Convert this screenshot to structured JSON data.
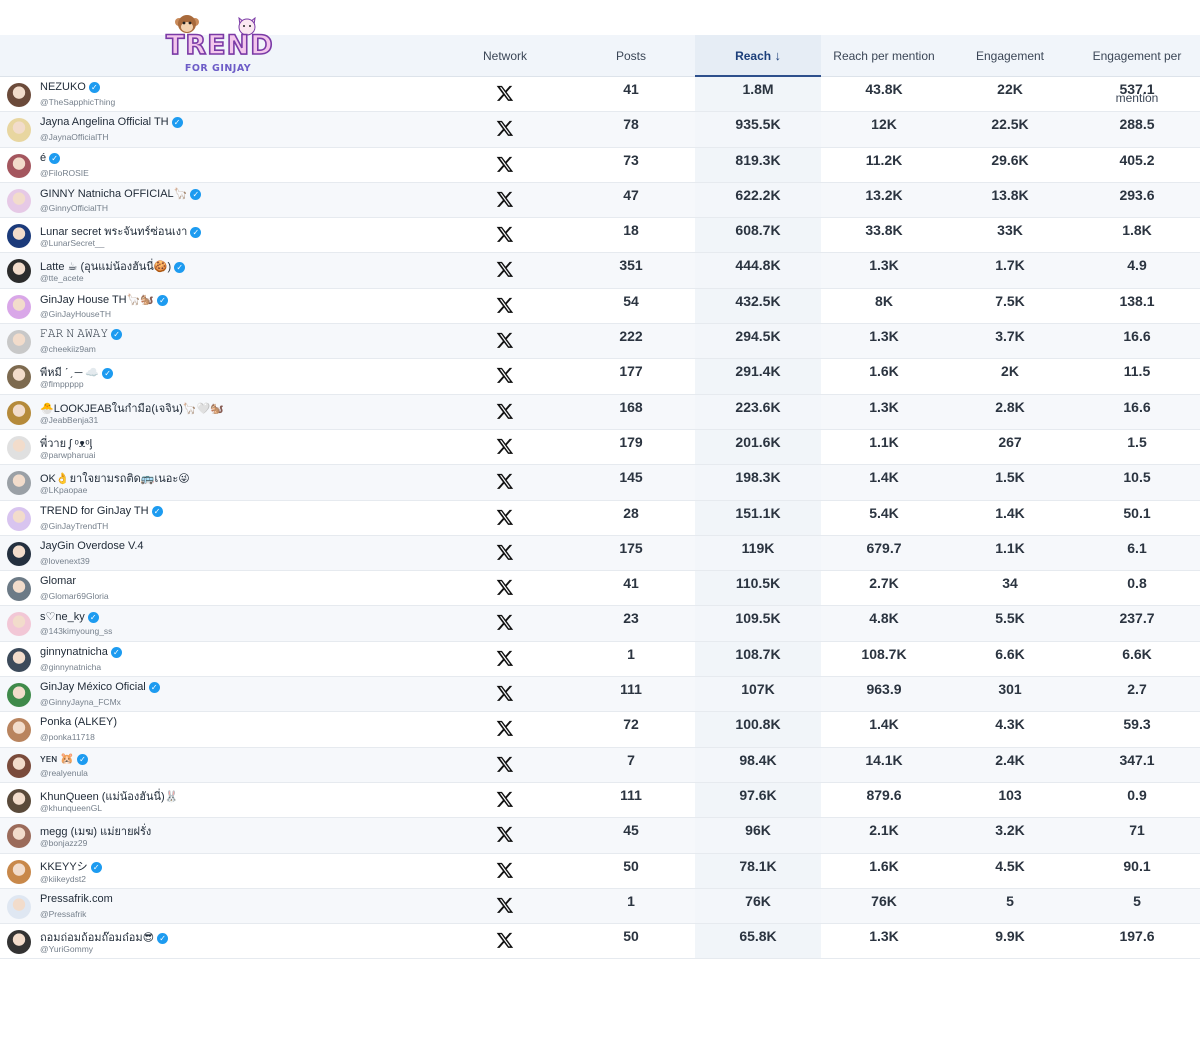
{
  "logo": {
    "text": "TREND",
    "sub": "FOR GINJAY"
  },
  "columns": {
    "network": "Network",
    "posts": "Posts",
    "reach": "Reach",
    "reach_per_mention": "Reach per mention",
    "engagement": "Engagement",
    "engagement_per_mention": "Engagement per mention"
  },
  "sort_icon": "arrow-down-icon",
  "colors": {
    "accent": "#2d4f8c",
    "verified": "#1d9bf0",
    "header_bg": "#f1f5fa"
  },
  "rows": [
    {
      "name": "NEZUKO",
      "handle": "@TheSapphicThing",
      "verified": true,
      "network": "x-icon",
      "posts": "41",
      "reach": "1.8M",
      "rpm": "43.8K",
      "engagement": "22K",
      "epm": "537.1",
      "avatar_color": "#6b4a3a"
    },
    {
      "name": "Jayna Angelina Official TH",
      "handle": "@JaynaOfficialTH",
      "verified": true,
      "network": "x-icon",
      "posts": "78",
      "reach": "935.5K",
      "rpm": "12K",
      "engagement": "22.5K",
      "epm": "288.5",
      "avatar_color": "#e8d6a0"
    },
    {
      "name": "é",
      "handle": "@FiloROSIE",
      "verified": true,
      "network": "x-icon",
      "posts": "73",
      "reach": "819.3K",
      "rpm": "11.2K",
      "engagement": "29.6K",
      "epm": "405.2",
      "avatar_color": "#a4565e"
    },
    {
      "name": "GINNY Natnicha OFFICIAL🦙",
      "handle": "@GinnyOfficialTH",
      "verified": true,
      "network": "x-icon",
      "posts": "47",
      "reach": "622.2K",
      "rpm": "13.2K",
      "engagement": "13.8K",
      "epm": "293.6",
      "avatar_color": "#e6c9e6"
    },
    {
      "name": "Lunar secret พระจันทร์ซ่อนเงา",
      "handle": "@LunarSecret__",
      "verified": true,
      "network": "x-icon",
      "posts": "18",
      "reach": "608.7K",
      "rpm": "33.8K",
      "engagement": "33K",
      "epm": "1.8K",
      "avatar_color": "#1b3a7a"
    },
    {
      "name": "Latte ☕ (อุนแม่น้องฮันนี่🍪)",
      "handle": "@tte_acete",
      "verified": true,
      "network": "x-icon",
      "posts": "351",
      "reach": "444.8K",
      "rpm": "1.3K",
      "engagement": "1.7K",
      "epm": "4.9",
      "avatar_color": "#2c2c2c"
    },
    {
      "name": "GinJay House TH🦙🐿️",
      "handle": "@GinJayHouseTH",
      "verified": true,
      "network": "x-icon",
      "posts": "54",
      "reach": "432.5K",
      "rpm": "8K",
      "engagement": "7.5K",
      "epm": "138.1",
      "avatar_color": "#d9a7e8"
    },
    {
      "name": "𝙵𝙰𝚁 𝙽 𝙰𝚆𝙰𝚈",
      "handle": "@cheekiiz9am",
      "verified": true,
      "network": "x-icon",
      "posts": "222",
      "reach": "294.5K",
      "rpm": "1.3K",
      "engagement": "3.7K",
      "epm": "16.6",
      "avatar_color": "#c8c8c8"
    },
    {
      "name": "พีหมี ˊ ̗ ─ ☁️",
      "handle": "@flmppppp",
      "verified": true,
      "network": "x-icon",
      "posts": "177",
      "reach": "291.4K",
      "rpm": "1.6K",
      "engagement": "2K",
      "epm": "11.5",
      "avatar_color": "#7d6a4f"
    },
    {
      "name": "🐣LOOKJEABในกำมือ(เจจิน)🦙🤍🐿️",
      "handle": "@JeabBenja31",
      "verified": false,
      "network": "x-icon",
      "posts": "168",
      "reach": "223.6K",
      "rpm": "1.3K",
      "engagement": "2.8K",
      "epm": "16.6",
      "avatar_color": "#b58a3a"
    },
    {
      "name": "พี่วาย ᶘ ᵒᴥᵒᶅ",
      "handle": "@parwpharuai",
      "verified": false,
      "network": "x-icon",
      "posts": "179",
      "reach": "201.6K",
      "rpm": "1.1K",
      "engagement": "267",
      "epm": "1.5",
      "avatar_color": "#e0e0e0"
    },
    {
      "name": "OK👌ยาใจยามรถติด🚌เนอะ😜",
      "handle": "@LKpaopae",
      "verified": false,
      "network": "x-icon",
      "posts": "145",
      "reach": "198.3K",
      "rpm": "1.4K",
      "engagement": "1.5K",
      "epm": "10.5",
      "avatar_color": "#9aa0a6"
    },
    {
      "name": "TREND for GinJay TH",
      "handle": "@GinJayTrendTH",
      "verified": true,
      "network": "x-icon",
      "posts": "28",
      "reach": "151.1K",
      "rpm": "5.4K",
      "engagement": "1.4K",
      "epm": "50.1",
      "avatar_color": "#d8c4ef"
    },
    {
      "name": "JayGin Overdose V.4",
      "handle": "@lovenext39",
      "verified": false,
      "network": "x-icon",
      "posts": "175",
      "reach": "119K",
      "rpm": "679.7",
      "engagement": "1.1K",
      "epm": "6.1",
      "avatar_color": "#24303f"
    },
    {
      "name": "Glomar",
      "handle": "@Glomar69Gloria",
      "verified": false,
      "network": "x-icon",
      "posts": "41",
      "reach": "110.5K",
      "rpm": "2.7K",
      "engagement": "34",
      "epm": "0.8",
      "avatar_color": "#6c7a86"
    },
    {
      "name": "s♡ne_ky",
      "handle": "@143kimyoung_ss",
      "verified": true,
      "network": "x-icon",
      "posts": "23",
      "reach": "109.5K",
      "rpm": "4.8K",
      "engagement": "5.5K",
      "epm": "237.7",
      "avatar_color": "#f2c7d6"
    },
    {
      "name": "ginnynatnicha",
      "handle": "@ginnynatnicha",
      "verified": true,
      "network": "x-icon",
      "posts": "1",
      "reach": "108.7K",
      "rpm": "108.7K",
      "engagement": "6.6K",
      "epm": "6.6K",
      "avatar_color": "#3c4a5a"
    },
    {
      "name": "GinJay México Oficial",
      "handle": "@GinnyJayna_FCMx",
      "verified": true,
      "network": "x-icon",
      "posts": "111",
      "reach": "107K",
      "rpm": "963.9",
      "engagement": "301",
      "epm": "2.7",
      "avatar_color": "#3f8a4a"
    },
    {
      "name": "Ponka (ALKEY)",
      "handle": "@ponka11718",
      "verified": false,
      "network": "x-icon",
      "posts": "72",
      "reach": "100.8K",
      "rpm": "1.4K",
      "engagement": "4.3K",
      "epm": "59.3",
      "avatar_color": "#b9845e"
    },
    {
      "name": "ʏᴇɴ 🐹",
      "handle": "@realyenula",
      "verified": true,
      "network": "x-icon",
      "posts": "7",
      "reach": "98.4K",
      "rpm": "14.1K",
      "engagement": "2.4K",
      "epm": "347.1",
      "avatar_color": "#7a4b3b"
    },
    {
      "name": "KhunQueen (แม่น้องฮันนี่)🐰",
      "handle": "@khunqueenGL",
      "verified": false,
      "network": "x-icon",
      "posts": "111",
      "reach": "97.6K",
      "rpm": "879.6",
      "engagement": "103",
      "epm": "0.9",
      "avatar_color": "#5a4a3a"
    },
    {
      "name": "megg (เมฆ) แม่ยายฝรั่ง",
      "handle": "@bonjazz29",
      "verified": false,
      "network": "x-icon",
      "posts": "45",
      "reach": "96K",
      "rpm": "2.1K",
      "engagement": "3.2K",
      "epm": "71",
      "avatar_color": "#9b6b5a"
    },
    {
      "name": "KKEYYシ",
      "handle": "@kiikeydst2",
      "verified": true,
      "network": "x-icon",
      "posts": "50",
      "reach": "78.1K",
      "rpm": "1.6K",
      "engagement": "4.5K",
      "epm": "90.1",
      "avatar_color": "#c8884a"
    },
    {
      "name": "Pressafrik.com",
      "handle": "@Pressafrik",
      "verified": false,
      "network": "x-icon",
      "posts": "1",
      "reach": "76K",
      "rpm": "76K",
      "engagement": "5",
      "epm": "5",
      "avatar_color": "#dfe7f2"
    },
    {
      "name": "ถอมถ่อมถ้อมถ๊อมถ๋อม😎",
      "handle": "@YuriGommy",
      "verified": true,
      "network": "x-icon",
      "posts": "50",
      "reach": "65.8K",
      "rpm": "1.3K",
      "engagement": "9.9K",
      "epm": "197.6",
      "avatar_color": "#333333"
    }
  ]
}
